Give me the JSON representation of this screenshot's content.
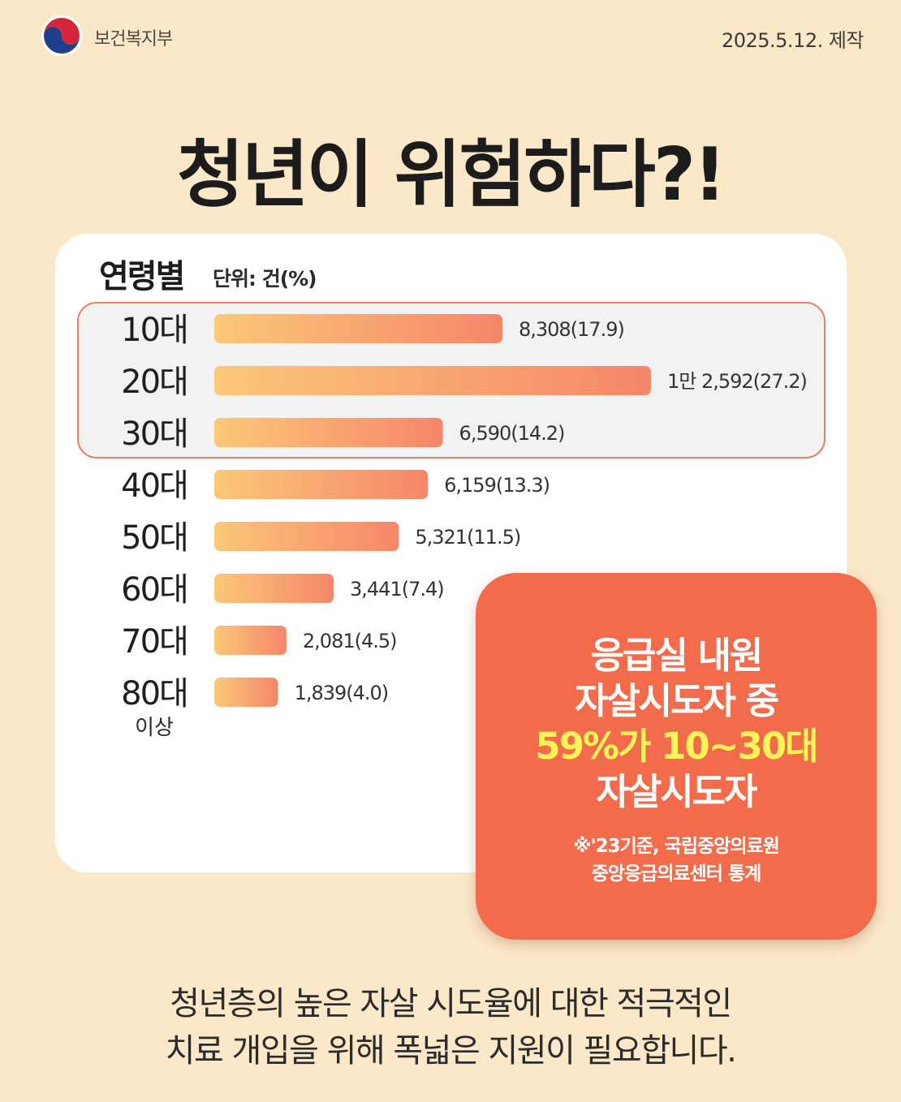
{
  "header": {
    "org": "보건복지부",
    "date": "2025.5.12. 제작"
  },
  "title": "청년이 위험하다?!",
  "card": {
    "title": "연령별",
    "unit": "단위: 건(%)"
  },
  "chart_data": {
    "type": "bar",
    "orientation": "horizontal",
    "title": "연령별",
    "unit": "단위: 건(%)",
    "categories": [
      "10대",
      "20대",
      "30대",
      "40대",
      "50대",
      "60대",
      "70대",
      "80대 이상"
    ],
    "category_main": [
      "10대",
      "20대",
      "30대",
      "40대",
      "50대",
      "60대",
      "70대",
      "80대"
    ],
    "category_sub": [
      "",
      "",
      "",
      "",
      "",
      "",
      "",
      "이상"
    ],
    "values": [
      8308,
      12592,
      6590,
      6159,
      5321,
      3441,
      2081,
      1839
    ],
    "percent": [
      17.9,
      27.2,
      14.2,
      13.3,
      11.5,
      7.4,
      4.5,
      4.0
    ],
    "value_labels": [
      "8,308(17.9)",
      "1만 2,592(27.2)",
      "6,590(14.2)",
      "6,159(13.3)",
      "5,321(11.5)",
      "3,441(7.4)",
      "2,081(4.5)",
      "1,839(4.0)"
    ],
    "highlighted": [
      "10대",
      "20대",
      "30대"
    ],
    "bar_gradient": [
      "#fbc878",
      "#f6866a"
    ],
    "xlim": [
      0,
      12592
    ],
    "grid": false,
    "legend": "none"
  },
  "callout": {
    "line1": "응급실 내원",
    "line2": "자살시도자 중",
    "line3": "59%가 10~30대",
    "line4": "자살시도자",
    "note1": "※'23기준, 국립중앙의료원",
    "note2": "중앙응급의료센터 통계",
    "color": "#f26b4b",
    "accent": "#fff35a"
  },
  "footer": {
    "line1": "청년층의 높은 자살 시도율에 대한 적극적인",
    "line2": "치료 개입을 위해 폭넓은 지원이 필요합니다."
  }
}
